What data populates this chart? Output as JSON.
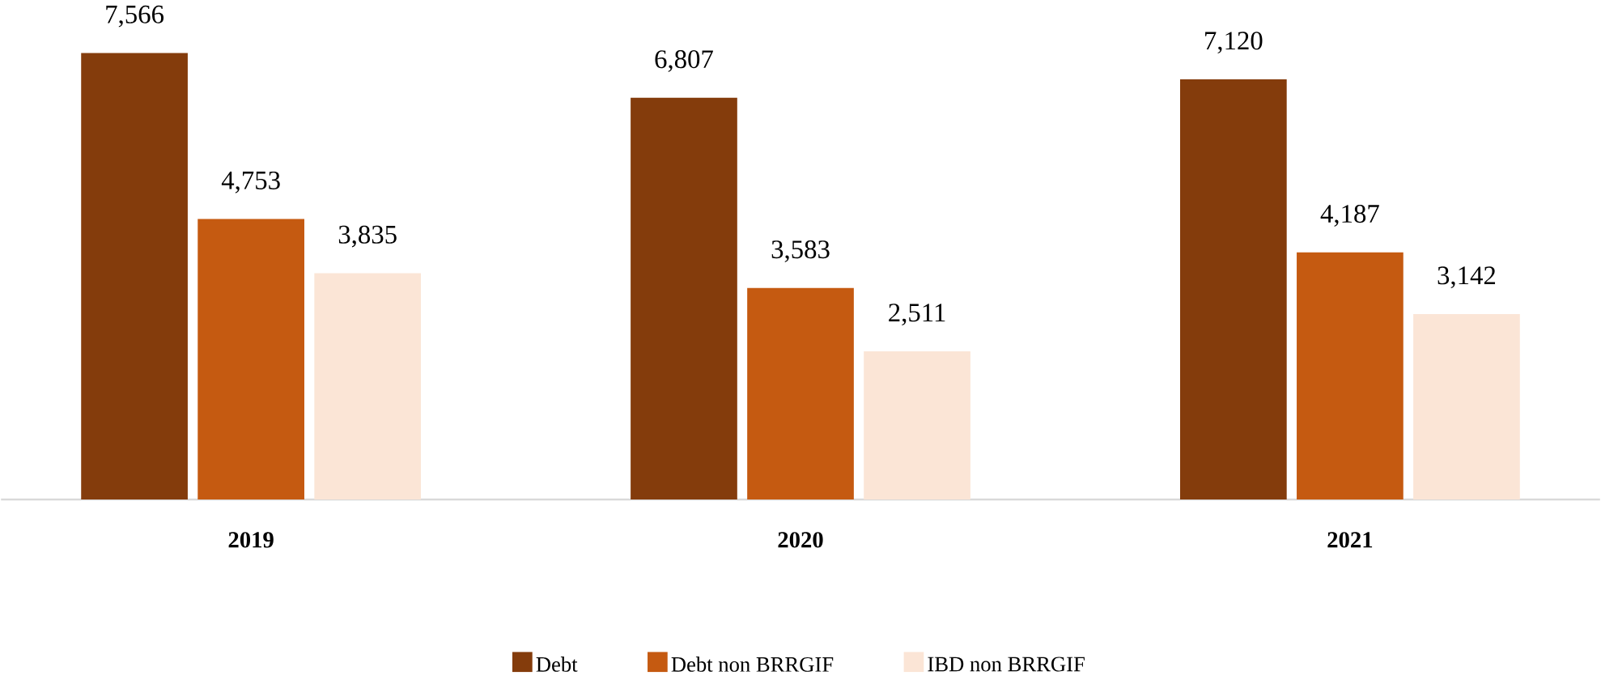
{
  "chart_data": {
    "type": "bar",
    "categories": [
      "2019",
      "2020",
      "2021"
    ],
    "legend": "bottom",
    "series": [
      {
        "name": "Debt",
        "color": "#843c0c",
        "values": [
          7566,
          6807,
          7120
        ],
        "value_labels": [
          "7,566",
          "6,807",
          "7,120"
        ]
      },
      {
        "name": "Debt non BRRGIF",
        "color": "#c55a11",
        "values": [
          4753,
          3583,
          4187
        ],
        "value_labels": [
          "4,753",
          "3,583",
          "4,187"
        ]
      },
      {
        "name": "IBD non BRRGIF",
        "color": "#fbe5d6",
        "values": [
          3835,
          2511,
          3142
        ],
        "value_labels": [
          "3,835",
          "2,511",
          "3,142"
        ]
      }
    ]
  }
}
